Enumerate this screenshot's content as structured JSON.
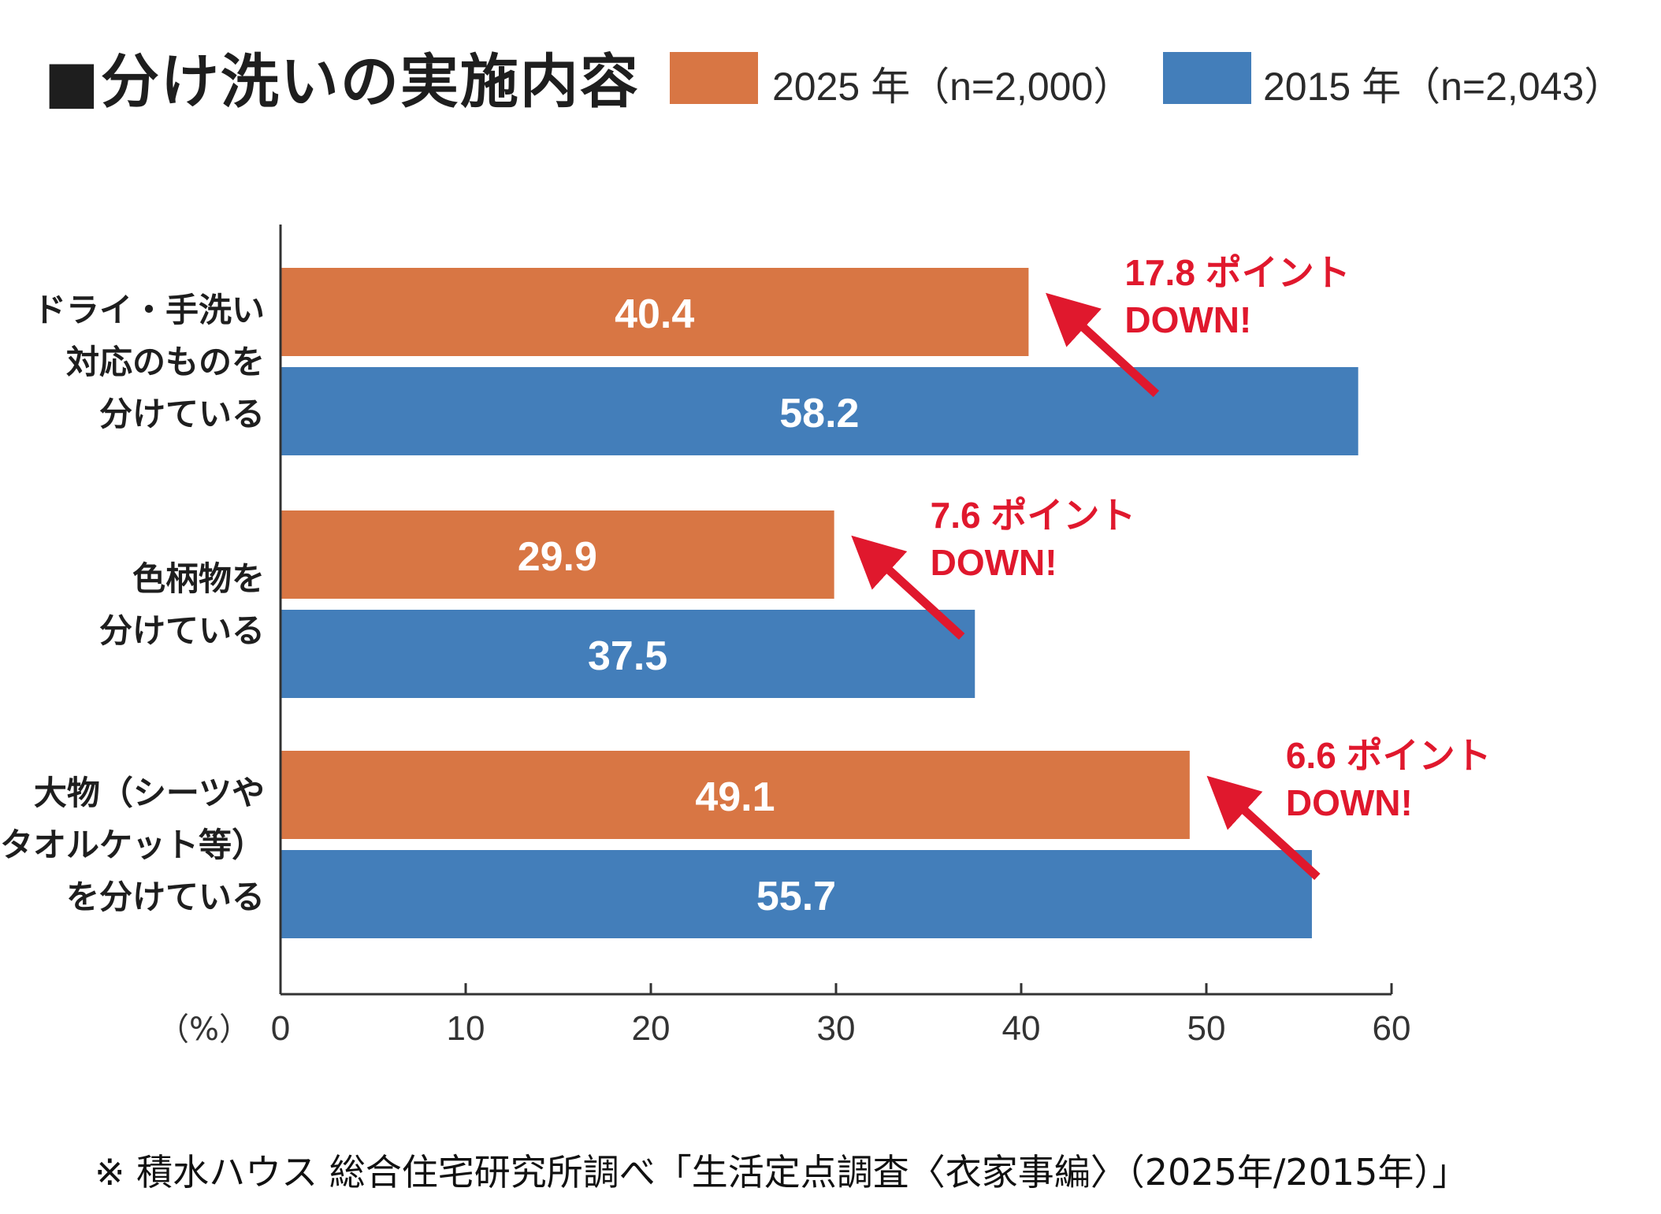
{
  "title": "■分け洗いの実施内容",
  "legend": [
    {
      "label": "2025 年（n=2,000）",
      "color": "#D87644"
    },
    {
      "label": "2015 年（n=2,043）",
      "color": "#437EBA"
    }
  ],
  "footnote": "※ 積水ハウス 総合住宅研究所調べ「生活定点調査〈衣家事編〉（2025年/2015年）」",
  "chart_data": {
    "type": "bar",
    "orientation": "horizontal",
    "title": "■分け洗いの実施内容",
    "xlabel": "（%）",
    "xlim": [
      0,
      60
    ],
    "xticks": [
      0,
      10,
      20,
      30,
      40,
      50,
      60
    ],
    "grid": false,
    "legend_position": "top-right",
    "categories": [
      [
        "ドライ・手洗い",
        "対応のものを",
        "分けている"
      ],
      [
        "色柄物を",
        "分けている"
      ],
      [
        "大物（シーツや",
        "タオルケット等）",
        "を分けている"
      ]
    ],
    "series": [
      {
        "name": "2025 年（n=2,000）",
        "color": "#D87644",
        "values": [
          40.4,
          29.9,
          49.1
        ]
      },
      {
        "name": "2015 年（n=2,043）",
        "color": "#437EBA",
        "values": [
          58.2,
          37.5,
          55.7
        ]
      }
    ],
    "annotations": [
      {
        "lines": [
          "17.8 ポイント",
          "DOWN!"
        ],
        "color": "#E0182D"
      },
      {
        "lines": [
          "7.6 ポイント",
          "DOWN!"
        ],
        "color": "#E0182D"
      },
      {
        "lines": [
          "6.6 ポイント",
          "DOWN!"
        ],
        "color": "#E0182D"
      }
    ]
  }
}
